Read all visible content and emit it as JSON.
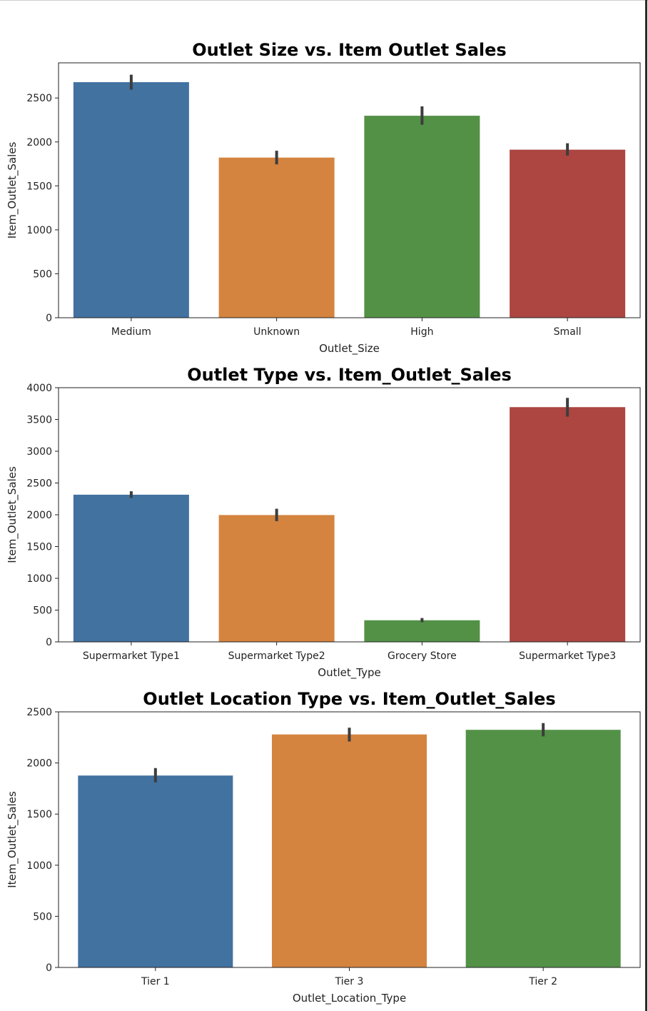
{
  "chart_data": [
    {
      "type": "bar",
      "title": "Outlet Size vs. Item Outlet Sales",
      "xlabel": "Outlet_Size",
      "ylabel": "Item_Outlet_Sales",
      "categories": [
        "Medium",
        "Unknown",
        "High",
        "Small"
      ],
      "values": [
        2680,
        1822,
        2298,
        1912
      ],
      "error_bars": [
        [
          2595,
          2765
        ],
        [
          1745,
          1900
        ],
        [
          2195,
          2405
        ],
        [
          1845,
          1985
        ]
      ],
      "colors": [
        "#4272a0",
        "#d4843f",
        "#539147",
        "#ad4541"
      ],
      "ylim": [
        0,
        2900
      ],
      "yticks": [
        0,
        500,
        1000,
        1500,
        2000,
        2500
      ],
      "grid": false
    },
    {
      "type": "bar",
      "title": "Outlet Type vs. Item_Outlet_Sales",
      "xlabel": "Outlet_Type",
      "ylabel": "Item_Outlet_Sales",
      "categories": [
        "Supermarket Type1",
        "Supermarket Type2",
        "Grocery Store",
        "Supermarket Type3"
      ],
      "values": [
        2316,
        1996,
        340,
        3694
      ],
      "error_bars": [
        [
          2265,
          2370
        ],
        [
          1900,
          2095
        ],
        [
          310,
          375
        ],
        [
          3545,
          3840
        ]
      ],
      "colors": [
        "#4272a0",
        "#d4843f",
        "#539147",
        "#ad4541"
      ],
      "ylim": [
        0,
        4000
      ],
      "yticks": [
        0,
        500,
        1000,
        1500,
        2000,
        2500,
        3000,
        3500,
        4000
      ],
      "grid": false
    },
    {
      "type": "bar",
      "title": "Outlet Location Type vs. Item_Outlet_Sales",
      "xlabel": "Outlet_Location_Type",
      "ylabel": "Item_Outlet_Sales",
      "categories": [
        "Tier 1",
        "Tier 3",
        "Tier 2"
      ],
      "values": [
        1877,
        2279,
        2324
      ],
      "error_bars": [
        [
          1810,
          1950
        ],
        [
          2210,
          2345
        ],
        [
          2260,
          2390
        ]
      ],
      "colors": [
        "#4272a0",
        "#d4843f",
        "#539147"
      ],
      "ylim": [
        0,
        2500
      ],
      "yticks": [
        0,
        500,
        1000,
        1500,
        2000,
        2500
      ],
      "grid": false
    }
  ]
}
